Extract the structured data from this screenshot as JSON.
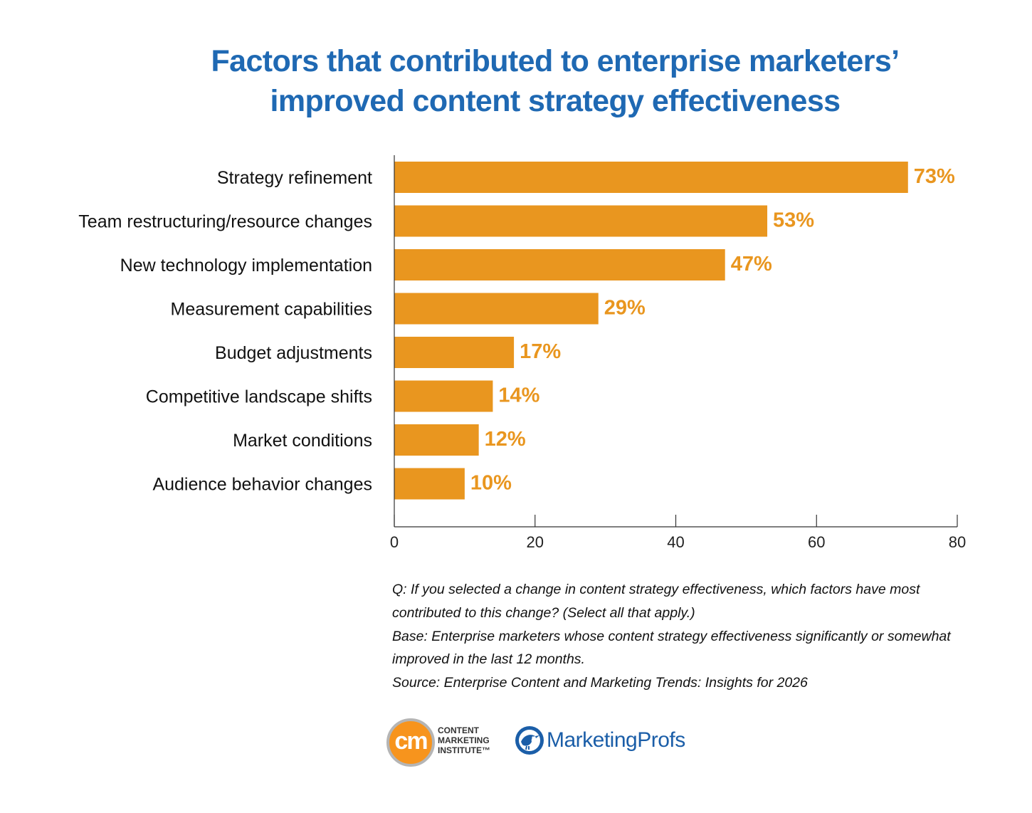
{
  "title_lines": [
    "Factors that contributed to enterprise marketers’",
    "improved content strategy effectiveness"
  ],
  "chart_data": {
    "type": "bar",
    "orientation": "horizontal",
    "title": "Factors that contributed to enterprise marketers’ improved content strategy effectiveness",
    "categories": [
      "Strategy refinement",
      "Team restructuring/resource changes",
      "New technology implementation",
      "Measurement capabilities",
      "Budget adjustments",
      "Competitive landscape shifts",
      "Market conditions",
      "Audience behavior changes"
    ],
    "values": [
      73,
      53,
      47,
      29,
      17,
      14,
      12,
      10
    ],
    "value_labels": [
      "73%",
      "53%",
      "47%",
      "29%",
      "17%",
      "14%",
      "12%",
      "10%"
    ],
    "xlim": [
      0,
      80
    ],
    "x_ticks": [
      0,
      20,
      40,
      60,
      80
    ],
    "xlabel": "",
    "ylabel": "",
    "grid": false,
    "bar_color": "#e9961f",
    "label_color": "#e9961f"
  },
  "notes": {
    "question": "Q: If you selected a change in content strategy effectiveness, which factors have most contributed to this change? (Select all that apply.)",
    "base": "Base: Enterprise marketers whose content strategy effectiveness significantly or somewhat improved in the last 12 months.",
    "source": "Source: Enterprise Content and Marketing Trends: Insights for 2026"
  },
  "logos": {
    "cmi": {
      "mark": "cm",
      "lines": [
        "CONTENT",
        "MARKETING",
        "INSTITUTE™"
      ],
      "color": "#f7941d"
    },
    "marketingprofs": {
      "name": "MarketingProfs",
      "icon": "bird-icon",
      "color": "#1b5ea8"
    }
  },
  "colors": {
    "title": "#1f69b3",
    "bar": "#e9961f"
  }
}
